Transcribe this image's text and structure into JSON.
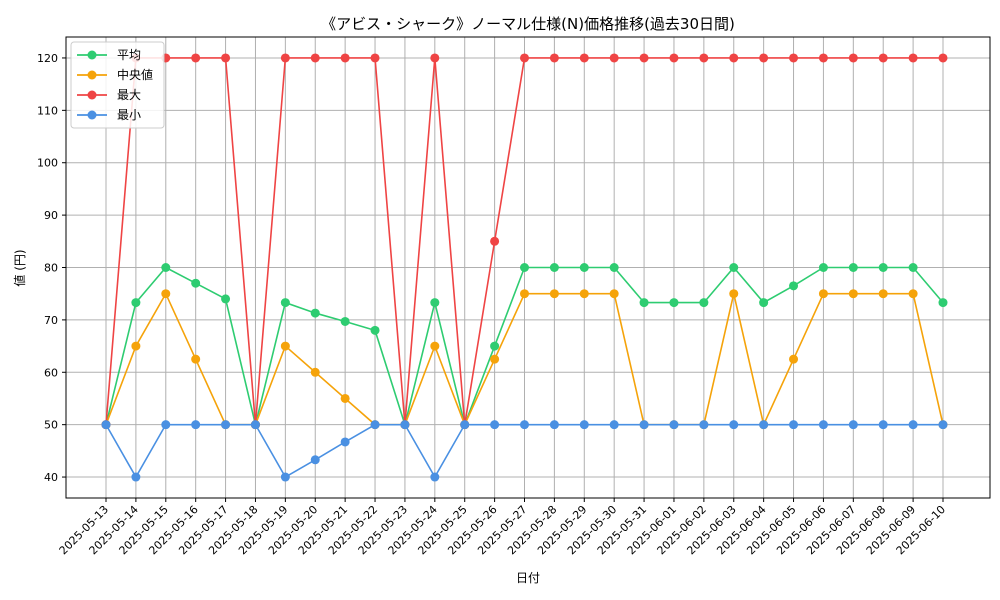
{
  "chart_data": {
    "type": "line",
    "title": "《アビス・シャーク》ノーマル仕様(N)価格推移(過去30日間)",
    "xlabel": "日付",
    "ylabel": "値 (円)",
    "ylim": [
      36,
      124
    ],
    "yticks": [
      40,
      50,
      60,
      70,
      80,
      90,
      100,
      110,
      120
    ],
    "grid": true,
    "legend_position": "top-left",
    "categories": [
      "2025-05-13",
      "2025-05-14",
      "2025-05-15",
      "2025-05-16",
      "2025-05-17",
      "2025-05-18",
      "2025-05-19",
      "2025-05-20",
      "2025-05-21",
      "2025-05-22",
      "2025-05-23",
      "2025-05-24",
      "2025-05-25",
      "2025-05-26",
      "2025-05-27",
      "2025-05-28",
      "2025-05-29",
      "2025-05-30",
      "2025-05-31",
      "2025-06-01",
      "2025-06-02",
      "2025-06-03",
      "2025-06-04",
      "2025-06-05",
      "2025-06-06",
      "2025-06-07",
      "2025-06-08",
      "2025-06-09",
      "2025-06-10"
    ],
    "series": [
      {
        "name": "平均",
        "color": "#2ecc71",
        "values": [
          50,
          73.3,
          80,
          77,
          74,
          50,
          73.3,
          71.3,
          69.7,
          68,
          50,
          73.3,
          50,
          65,
          80,
          80,
          80,
          80,
          73.3,
          73.3,
          73.3,
          80,
          73.3,
          76.5,
          80,
          80,
          80,
          80,
          73.3
        ]
      },
      {
        "name": "中央値",
        "color": "#f5a30a",
        "values": [
          50,
          65,
          75,
          62.5,
          50,
          50,
          65,
          60,
          55,
          50,
          50,
          65,
          50,
          62.5,
          75,
          75,
          75,
          75,
          50,
          50,
          50,
          75,
          50,
          62.5,
          75,
          75,
          75,
          75,
          50
        ]
      },
      {
        "name": "最大",
        "color": "#ef4444",
        "values": [
          50,
          120,
          120,
          120,
          120,
          50,
          120,
          120,
          120,
          120,
          50,
          120,
          50,
          85,
          120,
          120,
          120,
          120,
          120,
          120,
          120,
          120,
          120,
          120,
          120,
          120,
          120,
          120,
          120
        ]
      },
      {
        "name": "最小",
        "color": "#4a90e2",
        "values": [
          50,
          40,
          50,
          50,
          50,
          50,
          40,
          43.3,
          46.7,
          50,
          50,
          40,
          50,
          50,
          50,
          50,
          50,
          50,
          50,
          50,
          50,
          50,
          50,
          50,
          50,
          50,
          50,
          50,
          50
        ]
      }
    ]
  }
}
